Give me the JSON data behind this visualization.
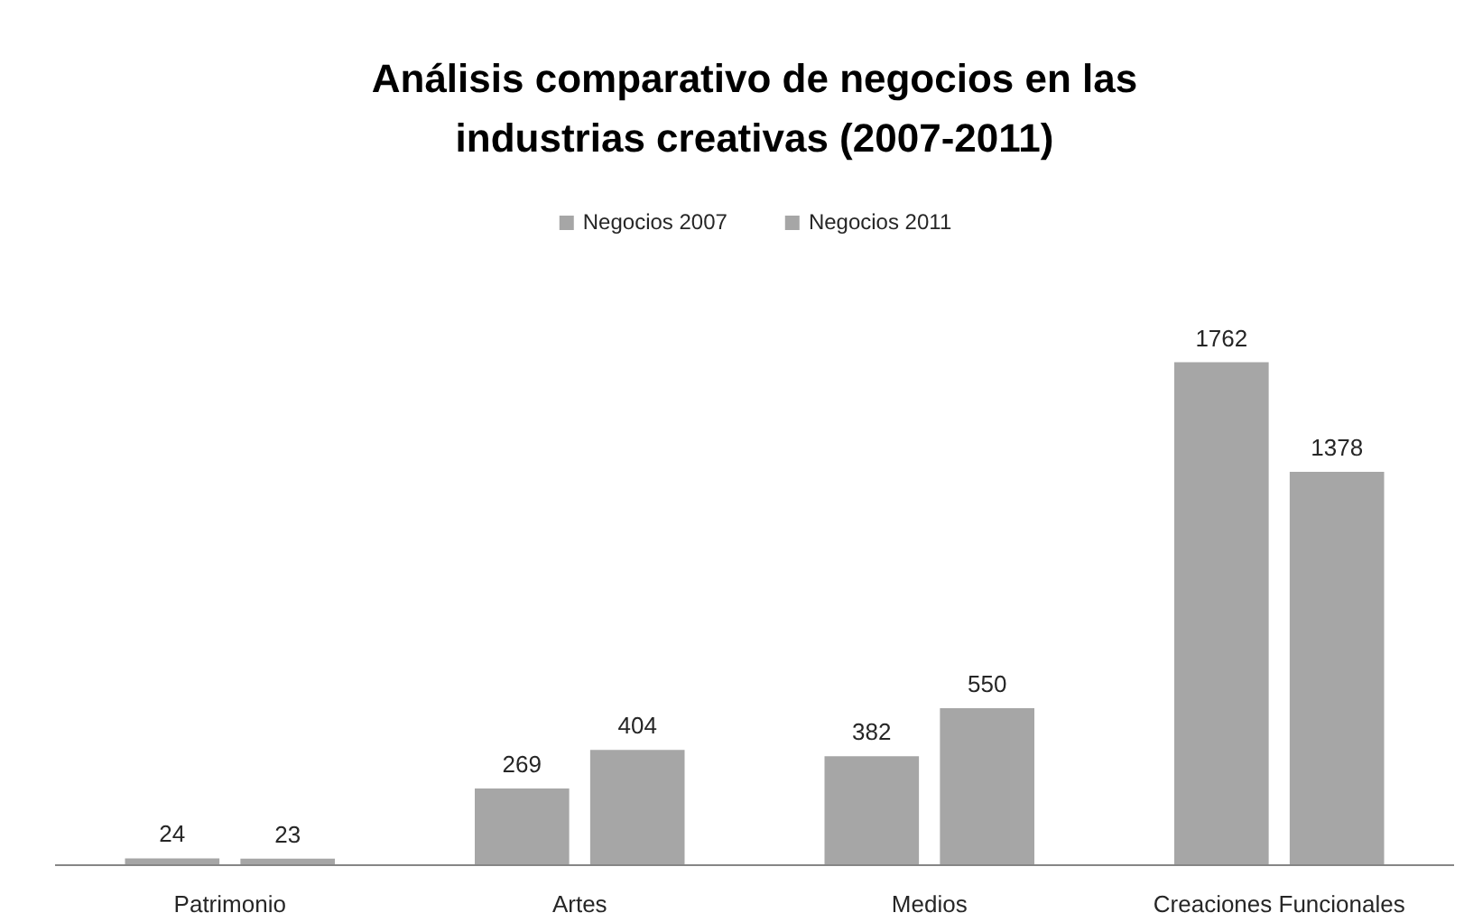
{
  "chart_data": {
    "type": "bar",
    "title": "Análisis comparativo de negocios en las industrias creativas (2007-2011)",
    "categories": [
      "Patrimonio",
      "Artes",
      "Medios",
      "Creaciones Funcionales"
    ],
    "series": [
      {
        "name": "Negocios 2007",
        "color": "#a6a6a6",
        "values": [
          24,
          269,
          382,
          1762
        ]
      },
      {
        "name": "Negocios 2011",
        "color": "#a6a6a6",
        "values": [
          23,
          404,
          550,
          1378
        ]
      }
    ],
    "data_labels": true,
    "legend": "top",
    "grid": false
  }
}
